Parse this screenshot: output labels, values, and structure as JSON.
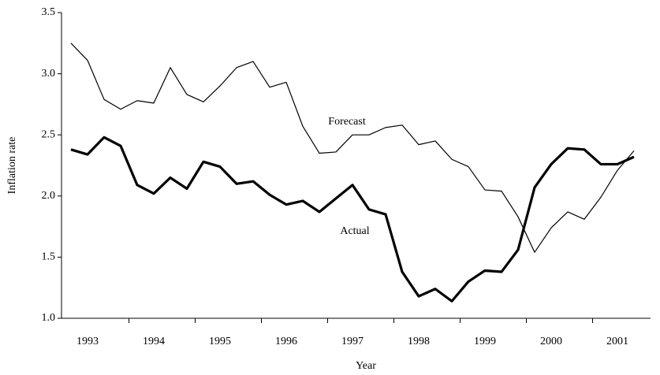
{
  "chart_data": {
    "type": "line",
    "x_label": "Year",
    "y_label": "Inflation rate",
    "categories": [
      null,
      "1993",
      null,
      null,
      null,
      "1994",
      null,
      null,
      null,
      "1995",
      null,
      null,
      null,
      "1996",
      null,
      null,
      null,
      "1997",
      null,
      null,
      null,
      "1998",
      null,
      null,
      null,
      "1999",
      null,
      null,
      null,
      "2000",
      null,
      null,
      null,
      "2001",
      null
    ],
    "series": [
      {
        "name": "Forecast",
        "color": "#000000",
        "width": 1.2,
        "values": [
          3.25,
          3.11,
          2.79,
          2.71,
          2.78,
          2.76,
          3.05,
          2.83,
          2.77,
          2.9,
          3.05,
          3.1,
          2.89,
          2.93,
          2.57,
          2.35,
          2.36,
          2.5,
          2.5,
          2.56,
          2.58,
          2.42,
          2.45,
          2.3,
          2.24,
          2.05,
          2.04,
          1.83,
          1.54,
          1.74,
          1.87,
          1.81,
          1.99,
          2.21,
          2.37
        ]
      },
      {
        "name": "Actual",
        "color": "#000000",
        "width": 3.2,
        "values": [
          2.38,
          2.34,
          2.48,
          2.41,
          2.09,
          2.02,
          2.15,
          2.06,
          2.28,
          2.24,
          2.1,
          2.12,
          2.01,
          1.93,
          1.96,
          1.87,
          1.98,
          2.09,
          1.89,
          1.85,
          1.38,
          1.18,
          1.24,
          1.14,
          1.3,
          1.39,
          1.38,
          1.56,
          2.07,
          2.26,
          2.39,
          2.38,
          2.26,
          2.26,
          2.32
        ]
      }
    ],
    "ylim": [
      1,
      3.5
    ],
    "yticks": [
      {
        "value": 1,
        "label": "1.0"
      },
      1.5,
      {
        "value": 2,
        "label": "2.0"
      },
      2.5,
      {
        "value": 3,
        "label": "3.0"
      },
      3.5
    ],
    "grid": false
  }
}
